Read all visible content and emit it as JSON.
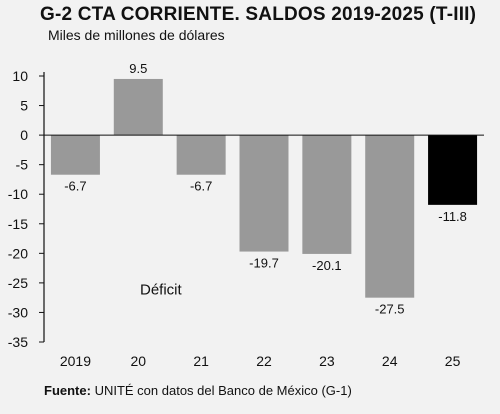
{
  "chart_data": {
    "type": "bar",
    "title": "G-2 CTA CORRIENTE. SALDOS 2019-2025 (T-III)",
    "subtitle": "Miles de millones de dólares",
    "categories": [
      "2019",
      "20",
      "21",
      "22",
      "23",
      "24",
      "25"
    ],
    "values": [
      -6.7,
      9.5,
      -6.7,
      -19.7,
      -20.1,
      -27.5,
      -11.8
    ],
    "value_labels": [
      "-6.7",
      "9.5",
      "-6.7",
      "-19.7",
      "-20.1",
      "-27.5",
      "-11.8"
    ],
    "yticks": [
      10,
      5,
      0,
      -5,
      -10,
      -15,
      -20,
      -25,
      -30,
      -35
    ],
    "ylim": [
      -35,
      10
    ],
    "annotation": "Déficit",
    "colors": {
      "bar": "#999999",
      "highlight": "#000000",
      "background": "#f2f2f2",
      "axis": "#111111"
    },
    "highlight_index": 6
  },
  "source": {
    "label": "Fuente:",
    "text": " UNITÉ con datos del Banco de México (G-1)"
  }
}
